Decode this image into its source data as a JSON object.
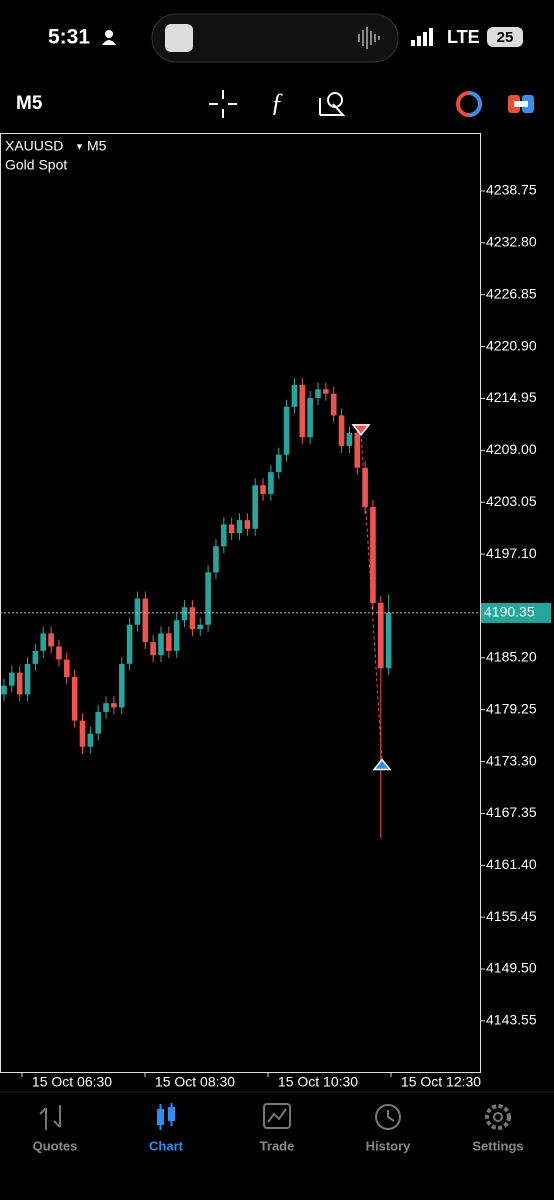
{
  "status_bar": {
    "time": "5:31",
    "network": "LTE",
    "battery": "25"
  },
  "toolbar": {
    "timeframe": "M5"
  },
  "chart_data": {
    "type": "candlestick",
    "symbol": "XAUUSD",
    "timeframe": "M5",
    "subtitle": "Gold Spot",
    "up_color": "#26a69a",
    "down_color": "#ef5350",
    "open": [
      4181.0,
      4182.0,
      4183.5,
      4181.0,
      4184.5,
      4186.0,
      4188.0,
      4186.5,
      4185.0,
      4183.0,
      4178.0,
      4175.0,
      4176.5,
      4179.0,
      4180.0,
      4179.5,
      4184.5,
      4189.0,
      4192.0,
      4187.0,
      4185.5,
      4188.0,
      4186.0,
      4189.5,
      4191.0,
      4188.5,
      4189.0,
      4195.0,
      4198.0,
      4200.5,
      4199.5,
      4201.0,
      4200.0,
      4205.0,
      4204.0,
      4206.5,
      4208.5,
      4214.0,
      4216.5,
      4210.5,
      4215.0,
      4216.0,
      4215.5,
      4213.0,
      4209.5,
      4211.0,
      4207.0,
      4202.5,
      4191.5,
      4184.0
    ],
    "high": [
      4182.8,
      4184.3,
      4184.3,
      4185.3,
      4186.8,
      4188.8,
      4188.8,
      4187.3,
      4185.8,
      4183.8,
      4178.8,
      4177.3,
      4179.8,
      4180.8,
      4180.8,
      4185.3,
      4189.8,
      4192.8,
      4192.8,
      4187.8,
      4188.8,
      4188.8,
      4190.3,
      4191.8,
      4191.8,
      4189.8,
      4195.8,
      4198.8,
      4201.3,
      4201.3,
      4201.8,
      4201.8,
      4205.8,
      4205.8,
      4207.3,
      4209.3,
      4214.8,
      4217.3,
      4217.3,
      4215.8,
      4216.8,
      4216.8,
      4216.3,
      4213.8,
      4211.8,
      4211.8,
      4207.8,
      4203.3,
      4192.3,
      4192.5
    ],
    "low": [
      4180.2,
      4181.2,
      4180.2,
      4180.2,
      4183.7,
      4185.2,
      4185.7,
      4184.2,
      4182.2,
      4177.2,
      4174.2,
      4174.2,
      4175.7,
      4178.2,
      4178.7,
      4178.7,
      4183.7,
      4188.2,
      4186.2,
      4184.7,
      4184.7,
      4185.2,
      4185.2,
      4188.7,
      4187.7,
      4187.7,
      4188.2,
      4194.2,
      4197.2,
      4198.7,
      4198.7,
      4199.2,
      4199.2,
      4203.2,
      4203.2,
      4205.7,
      4207.7,
      4213.2,
      4209.7,
      4209.7,
      4214.2,
      4214.7,
      4212.2,
      4208.7,
      4208.7,
      4206.2,
      4201.7,
      4190.7,
      4164.5,
      4183.2
    ],
    "close": [
      4182.0,
      4183.5,
      4181.0,
      4184.5,
      4186.0,
      4188.0,
      4186.5,
      4185.0,
      4183.0,
      4178.0,
      4175.0,
      4176.5,
      4179.0,
      4180.0,
      4179.5,
      4184.5,
      4189.0,
      4192.0,
      4187.0,
      4185.5,
      4188.0,
      4186.0,
      4189.5,
      4191.0,
      4188.5,
      4189.0,
      4195.0,
      4198.0,
      4200.5,
      4199.5,
      4201.0,
      4200.0,
      4205.0,
      4204.0,
      4206.5,
      4208.5,
      4214.0,
      4216.5,
      4210.5,
      4215.0,
      4216.0,
      4215.5,
      4213.0,
      4209.5,
      4211.0,
      4207.0,
      4202.5,
      4191.5,
      4184.0,
      4190.35
    ],
    "ylim": [
      4137.69,
      4245.4
    ],
    "yticks": [
      4238.75,
      {
        "value": 4232.8,
        "label": "4232.80"
      },
      4226.85,
      {
        "value": 4220.9,
        "label": "4220.90"
      },
      4214.95,
      {
        "value": 4209.0,
        "label": "4209.00"
      },
      4203.05,
      {
        "value": 4197.1,
        "label": "4197.10"
      },
      {
        "value": 4185.2,
        "label": "4185.20"
      },
      4179.25,
      {
        "value": 4173.3,
        "label": "4173.30"
      },
      4167.35,
      {
        "value": 4161.4,
        "label": "4161.40"
      },
      4155.45,
      {
        "value": 4149.5,
        "label": "4149.50"
      },
      4143.55
    ],
    "current_price": 4190.35,
    "entry_price": 4211.0,
    "exit_price": 4173.3,
    "x_labels": [
      "15 Oct 06:30",
      "15 Oct 08:30",
      "15 Oct 10:30",
      "15 Oct 12:30"
    ]
  },
  "tabs": [
    "Quotes",
    "Chart",
    "Trade",
    "History",
    "Settings"
  ]
}
